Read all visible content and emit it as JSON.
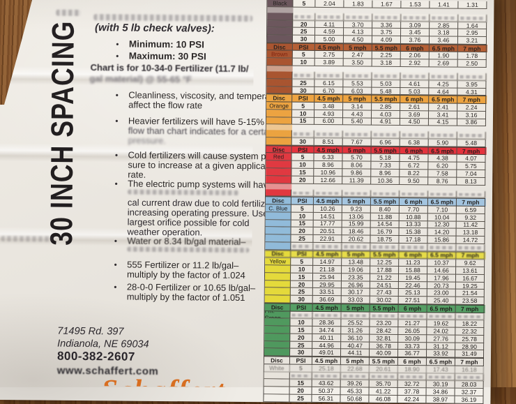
{
  "left": {
    "vertical_title": "30 INCH SPACING",
    "bullet_glyph": "•",
    "intro": "(with 5 lb check valves):",
    "psi_min": "Minimum: 10 PSI",
    "psi_max": "Maximum: 30 PSI",
    "chart_note_1": "Chart is for 10-34-0 Fertilizer (11.7 lb/",
    "chart_note_2": "gal material) @ 55-65 °F",
    "clean": [
      "Cleanliness, viscosity, and temperature",
      "affect the flow rate"
    ],
    "heavier": [
      "Heavier fertilizers will have 5-15% less",
      "flow than chart indicates for a certain",
      "pressure."
    ],
    "cold": [
      "Cold fertilizers will cause system pres-",
      "sure to increase at a given application",
      "rate."
    ],
    "electric": "The electric pump systems will have",
    "current": [
      "cal current draw due to cold fertilizer",
      "increasing operating pressure. Use the",
      "largest orifice possible for cold",
      "weather operation."
    ],
    "water": "Water or 8.34 lb/gal material–",
    "f555": [
      "555 Fertilizer or 11.2 lb/gal–",
      "multiply by the factor of 1.024"
    ],
    "f280": [
      "28-0-0 Fertilizer or 10.65 lb/gal–",
      "multiply by the factor of 1.051"
    ],
    "address_1": "71495 Rd. 397",
    "address_2": "Indianola, NE 69034",
    "phone": "800-382-2607",
    "website": "www.schaffert.com",
    "logo_partial": "Schaffert"
  },
  "chart_data": {
    "type": "table",
    "columns": [
      "Disc",
      "PSI",
      "4.5 mph",
      "5 mph",
      "5.5 mph",
      "6 mph",
      "6.5 mph",
      "7 mph"
    ],
    "sections": [
      {
        "disc": "Black",
        "disc_color": "#665159",
        "header": false,
        "rows": [
          {
            "type": "data",
            "psi": "5",
            "show_disc": true,
            "values": [
              "2.04",
              "1.83",
              "1.67",
              "1.53",
              "1.41",
              "1.31"
            ]
          },
          {
            "type": "gap"
          },
          {
            "type": "blur"
          },
          {
            "type": "data",
            "psi": "20",
            "values": [
              "4.11",
              "3.70",
              "3.36",
              "3.09",
              "2.85",
              "1.64"
            ]
          },
          {
            "type": "data",
            "psi": "25",
            "values": [
              "4.59",
              "4.13",
              "3.75",
              "3.45",
              "3.18",
              "2.95"
            ]
          },
          {
            "type": "data",
            "psi": "30",
            "values": [
              "5.00",
              "4.50",
              "4.09",
              "3.76",
              "3.46",
              "3.21"
            ]
          }
        ]
      },
      {
        "disc": "Brown",
        "disc_color": "#a8502b",
        "header": true,
        "header_bg": "#b55c31",
        "header_fg": "#7c1a06",
        "label_fg": "#7c1a06",
        "rows": [
          {
            "type": "data",
            "psi": "5",
            "show_disc": true,
            "values": [
              "2.75",
              "2.47",
              "2.25",
              "2.06",
              "1.90",
              "1.78"
            ]
          },
          {
            "type": "data",
            "psi": "10",
            "values": [
              "3.89",
              "3.50",
              "3.18",
              "2.92",
              "2.69",
              "2.50"
            ]
          },
          {
            "type": "gap"
          },
          {
            "type": "blur"
          },
          {
            "type": "data",
            "psi": "25",
            "values": [
              "6.15",
              "5.53",
              "5.03",
              "4.61",
              "4.25",
              "3.95"
            ]
          },
          {
            "type": "data",
            "psi": "30",
            "values": [
              "6.70",
              "6.03",
              "5.48",
              "5.03",
              "4.64",
              "4.31"
            ]
          }
        ]
      },
      {
        "disc": "Orange",
        "disc_color": "#f0a43d",
        "header": true,
        "header_bg": "#f2a53e",
        "header_fg": "#161412",
        "rows": [
          {
            "type": "data",
            "psi": "5",
            "show_disc": true,
            "values": [
              "3.48",
              "3.14",
              "2.85",
              "2.61",
              "2.41",
              "2.24"
            ]
          },
          {
            "type": "data",
            "psi": "10",
            "values": [
              "4.93",
              "4.43",
              "4.03",
              "3.69",
              "3.41",
              "3.16"
            ]
          },
          {
            "type": "data",
            "psi": "15",
            "values": [
              "6.00",
              "5.40",
              "4.91",
              "4.50",
              "4.15",
              "3.86"
            ]
          },
          {
            "type": "gap"
          },
          {
            "type": "blur"
          },
          {
            "type": "data",
            "psi": "30",
            "values": [
              "8.51",
              "7.67",
              "6.96",
              "6.38",
              "5.90",
              "5.48"
            ]
          }
        ]
      },
      {
        "disc": "Red",
        "disc_color": "#e5343e",
        "header": true,
        "header_bg": "#ea2f3b",
        "header_fg": "#1a0d0d",
        "rows": [
          {
            "type": "data",
            "psi": "5",
            "show_disc": true,
            "values": [
              "6.33",
              "5.70",
              "5.18",
              "4.75",
              "4.38",
              "4.07"
            ]
          },
          {
            "type": "data",
            "psi": "10",
            "values": [
              "8.96",
              "8.06",
              "7.33",
              "6.72",
              "6.20",
              "5.75"
            ]
          },
          {
            "type": "data",
            "psi": "15",
            "values": [
              "10.96",
              "9.86",
              "8.96",
              "8.22",
              "7.58",
              "7.04"
            ]
          },
          {
            "type": "data",
            "psi": "20",
            "values": [
              "12.66",
              "11.39",
              "10.36",
              "9.50",
              "8.76",
              "8.13"
            ]
          },
          {
            "type": "gap"
          },
          {
            "type": "blur"
          }
        ]
      },
      {
        "disc": "C. Blue",
        "disc_color": "#92c0e2",
        "header": true,
        "header_bg": "#a6cbe9",
        "header_fg": "#13161a",
        "rows": [
          {
            "type": "data",
            "psi": "5",
            "show_disc": true,
            "values": [
              "10.26",
              "9.23",
              "8.40",
              "7.70",
              "7.10",
              "6.59"
            ]
          },
          {
            "type": "data",
            "psi": "10",
            "values": [
              "14.51",
              "13.06",
              "11.88",
              "10.88",
              "10.04",
              "9.32"
            ]
          },
          {
            "type": "data",
            "psi": "15",
            "values": [
              "17.77",
              "15.99",
              "14.54",
              "13.33",
              "12.30",
              "11.42"
            ]
          },
          {
            "type": "data",
            "psi": "20",
            "values": [
              "20.51",
              "18.46",
              "16.79",
              "15.38",
              "14.20",
              "13.18"
            ]
          },
          {
            "type": "data",
            "psi": "25",
            "values": [
              "22.91",
              "20.62",
              "18.75",
              "17.18",
              "15.86",
              "14.72"
            ]
          },
          {
            "type": "blur"
          }
        ]
      },
      {
        "disc": "Yellow",
        "disc_color": "#ece23a",
        "header": true,
        "header_bg": "#efe54a",
        "header_fg": "#23210f",
        "header_blur": true,
        "rows": [
          {
            "type": "data",
            "psi": "5",
            "show_disc": true,
            "values": [
              "14.97",
              "13.48",
              "12.25",
              "11.23",
              "10.37",
              "9.62"
            ]
          },
          {
            "type": "data",
            "psi": "10",
            "values": [
              "21.18",
              "19.06",
              "17.88",
              "15.88",
              "14.66",
              "13.61"
            ]
          },
          {
            "type": "data",
            "psi": "15",
            "values": [
              "25.94",
              "23.35",
              "21.22",
              "19.45",
              "17.96",
              "16.67"
            ]
          },
          {
            "type": "data",
            "psi": "20",
            "values": [
              "29.95",
              "26.96",
              "24.51",
              "22.46",
              "20.73",
              "19.25"
            ]
          },
          {
            "type": "data",
            "psi": "25",
            "values": [
              "33.51",
              "30.17",
              "27.43",
              "25.13",
              "23.00",
              "21.54"
            ]
          },
          {
            "type": "data",
            "psi": "30",
            "values": [
              "36.69",
              "33.03",
              "30.02",
              "27.51",
              "25.40",
              "23.58"
            ]
          }
        ]
      },
      {
        "disc": "Fm. Green",
        "disc_color": "#4e9e61",
        "header": true,
        "header_bg": "#55a468",
        "header_fg": "#102a16",
        "rows": [
          {
            "type": "blur",
            "show_disc": true
          },
          {
            "type": "data",
            "psi": "10",
            "values": [
              "28.36",
              "25.52",
              "23.20",
              "21.27",
              "19.62",
              "18.22"
            ]
          },
          {
            "type": "data",
            "psi": "15",
            "values": [
              "34.74",
              "31.26",
              "28.42",
              "26.05",
              "24.02",
              "22.32"
            ]
          },
          {
            "type": "data",
            "psi": "20",
            "values": [
              "40.11",
              "36.10",
              "32.81",
              "30.09",
              "27.76",
              "25.78"
            ]
          },
          {
            "type": "data",
            "psi": "25",
            "values": [
              "44.96",
              "40.47",
              "36.78",
              "33.73",
              "31.12",
              "28.90"
            ]
          },
          {
            "type": "data",
            "psi": "30",
            "values": [
              "49.01",
              "44.11",
              "40.09",
              "36.77",
              "33.92",
              "31.49"
            ]
          }
        ]
      },
      {
        "disc": "White",
        "disc_color": "#f2efe9",
        "header": true,
        "header_bg": "#f2efe9",
        "header_fg": "#17150f",
        "rows": [
          {
            "type": "data",
            "psi": "5",
            "show_disc": true,
            "faded": true,
            "values": [
              "25.18",
              "22.68",
              "20.61",
              "18.90",
              "17.43",
              "16.18"
            ]
          },
          {
            "type": "blur"
          },
          {
            "type": "data",
            "psi": "15",
            "values": [
              "43.62",
              "39.26",
              "35.70",
              "32.72",
              "30.19",
              "28.03"
            ]
          },
          {
            "type": "data",
            "psi": "20",
            "values": [
              "50.37",
              "45.33",
              "41.22",
              "37.78",
              "34.86",
              "32.37"
            ]
          },
          {
            "type": "data",
            "psi": "25",
            "values": [
              "56.31",
              "50.68",
              "46.08",
              "42.24",
              "38.97",
              "36.19"
            ]
          }
        ]
      }
    ]
  }
}
